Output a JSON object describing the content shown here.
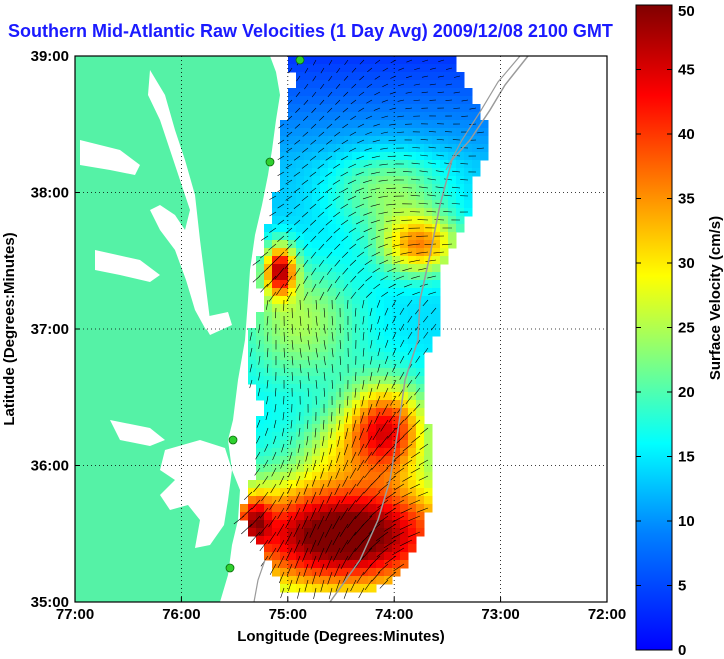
{
  "title": "Southern Mid-Atlantic Raw Velocities (1 Day Avg) 2009/12/08 2100 GMT",
  "map": {
    "xlabel": "Longitude (Degrees:Minutes)",
    "ylabel": "Latitude (Degrees:Minutes)",
    "xticks": [
      "77:00",
      "76:00",
      "75:00",
      "74:00",
      "73:00",
      "72:00"
    ],
    "yticks": [
      "35:00",
      "36:00",
      "37:00",
      "38:00",
      "39:00"
    ],
    "xlim": [
      -77,
      -72
    ],
    "ylim": [
      35,
      39
    ],
    "grid": "dotted",
    "land_color": "#55f2a6",
    "water_color": "#ffffff",
    "station_color": "#2fd02f"
  },
  "colorbar": {
    "label": "Surface Velocity (cm/s)",
    "ticks": [
      "0",
      "5",
      "10",
      "15",
      "20",
      "25",
      "30",
      "35",
      "40",
      "45",
      "50"
    ],
    "range": [
      0,
      50
    ],
    "colormap": "jet"
  }
}
